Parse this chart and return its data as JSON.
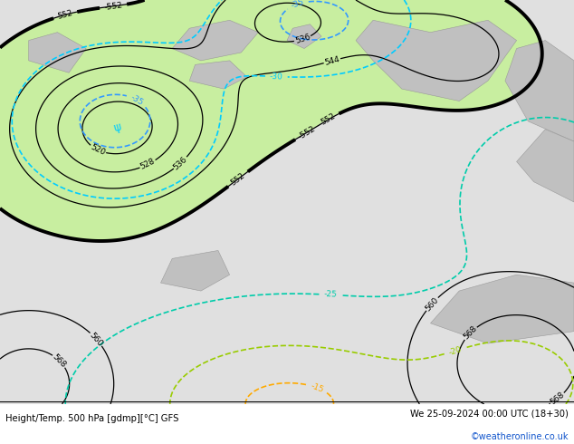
{
  "title_left": "Height/Temp. 500 hPa [gdmp][°C] GFS",
  "title_right": "We 25-09-2024 00:00 UTC (18+30)",
  "credit": "©weatheronline.co.uk",
  "bg_green": "#c8eea0",
  "bg_gray": "#c0c0c0",
  "bg_sea": "#d8d8d8",
  "fig_width": 6.34,
  "fig_height": 4.9,
  "dpi": 100,
  "temp_colors": {
    "-35": "#3399ff",
    "-30": "#00ccff",
    "-25": "#00ccaa",
    "-20": "#99cc00",
    "-15": "#ffaa00"
  }
}
